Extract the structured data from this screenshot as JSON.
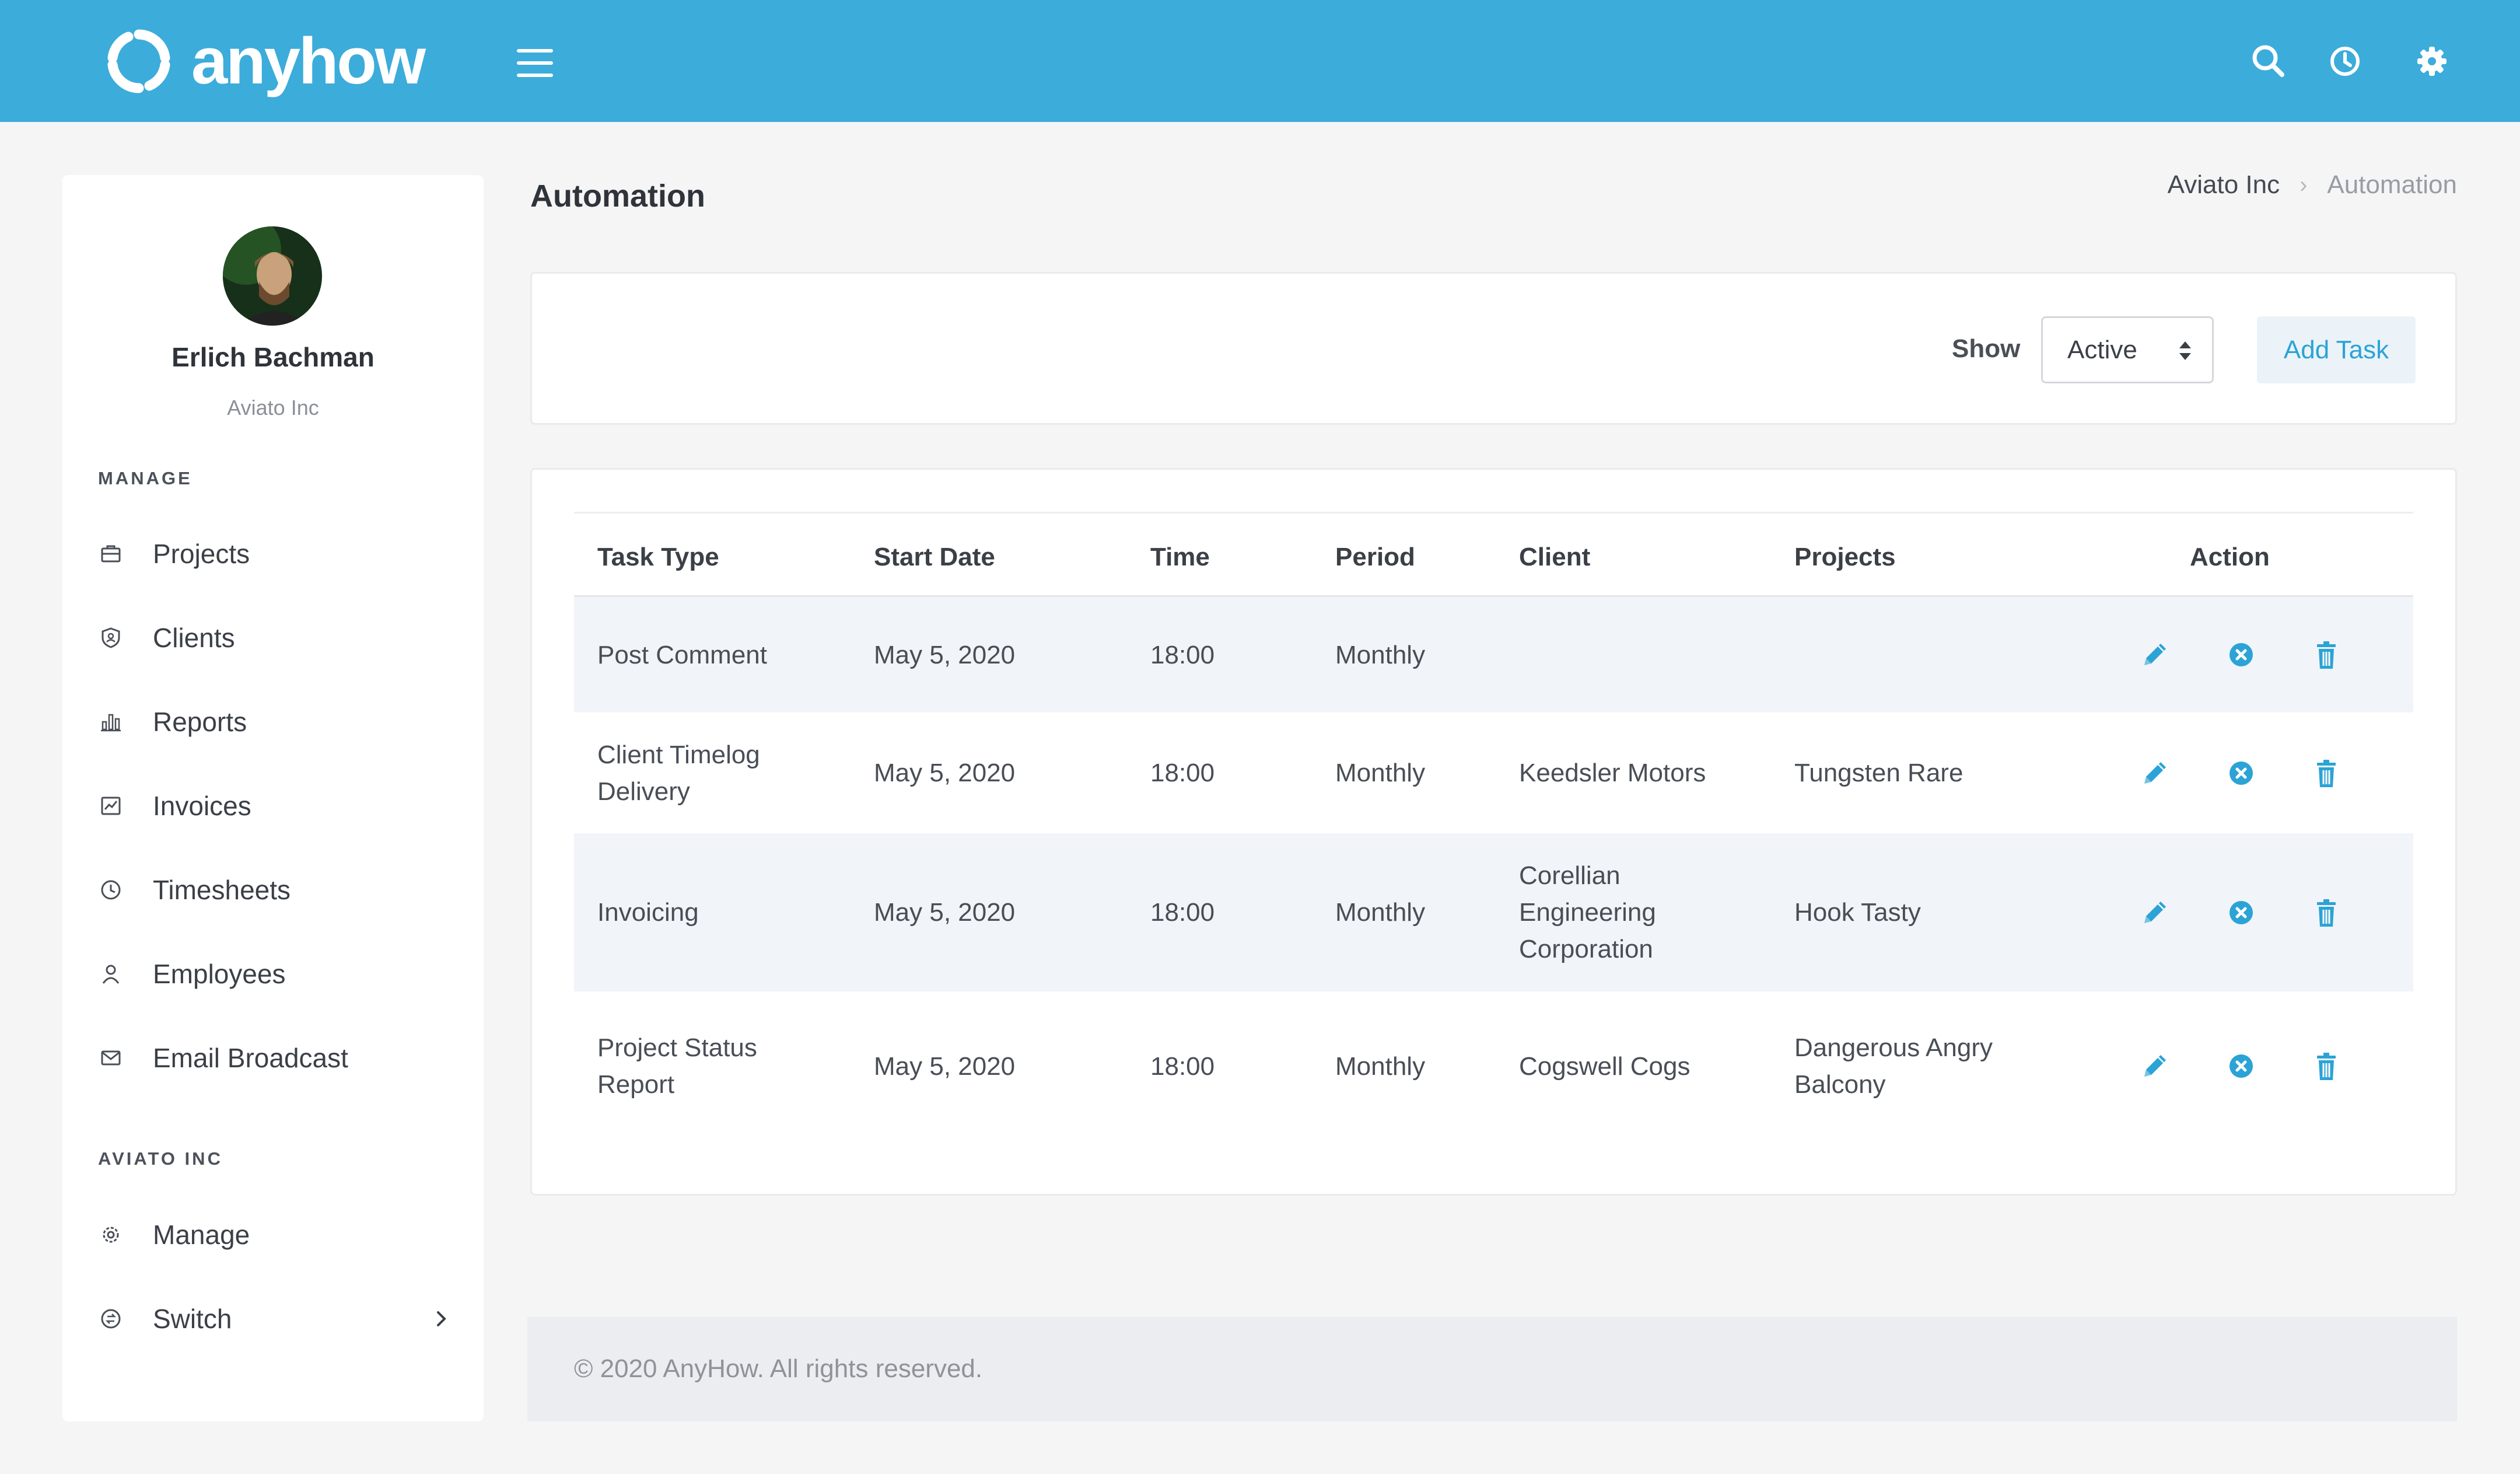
{
  "header": {
    "brand": "anyhow",
    "icons": [
      "refresh-logo-icon",
      "menu-icon",
      "search-icon",
      "clock-icon",
      "gear-icon"
    ],
    "accent_color": "#3cacdb"
  },
  "sidebar": {
    "user": {
      "name": "Erlich Bachman",
      "company": "Aviato Inc"
    },
    "sections": [
      {
        "label": "MANAGE",
        "items": [
          {
            "label": "Projects",
            "icon": "briefcase-icon"
          },
          {
            "label": "Clients",
            "icon": "shield-icon"
          },
          {
            "label": "Reports",
            "icon": "bar-chart-icon"
          },
          {
            "label": "Invoices",
            "icon": "trend-chart-icon"
          },
          {
            "label": "Timesheets",
            "icon": "clock-icon"
          },
          {
            "label": "Employees",
            "icon": "user-icon"
          },
          {
            "label": "Email Broadcast",
            "icon": "mail-icon"
          }
        ]
      },
      {
        "label": "AVIATO INC",
        "items": [
          {
            "label": "Manage",
            "icon": "gear-icon"
          },
          {
            "label": "Switch",
            "icon": "switch-icon"
          }
        ]
      }
    ]
  },
  "page": {
    "title": "Automation",
    "breadcrumb": {
      "parent": "Aviato Inc",
      "separator": "›",
      "current": "Automation"
    }
  },
  "filter": {
    "show_label": "Show",
    "selected": "Active",
    "add_task_label": "Add Task"
  },
  "table": {
    "columns": [
      "Task Type",
      "Start Date",
      "Time",
      "Period",
      "Client",
      "Projects",
      "Action"
    ],
    "rows": [
      {
        "task_type": [
          "Post Comment"
        ],
        "start_date": "May 5, 2020",
        "time": "18:00",
        "period": "Monthly",
        "client": [],
        "projects": []
      },
      {
        "task_type": [
          "Client Timelog",
          "Delivery"
        ],
        "start_date": "May 5, 2020",
        "time": "18:00",
        "period": "Monthly",
        "client": [
          "Keedsler Motors"
        ],
        "projects": [
          "Tungsten Rare"
        ]
      },
      {
        "task_type": [
          "Invoicing"
        ],
        "start_date": "May 5, 2020",
        "time": "18:00",
        "period": "Monthly",
        "client": [
          "Corellian",
          "Engineering",
          "Corporation"
        ],
        "projects": [
          "Hook Tasty"
        ]
      },
      {
        "task_type": [
          "Project Status",
          "Report"
        ],
        "start_date": "May 5, 2020",
        "time": "18:00",
        "period": "Monthly",
        "client": [
          "Cogswell Cogs"
        ],
        "projects": [
          "Dangerous Angry",
          "Balcony"
        ]
      }
    ],
    "row_actions": [
      "edit-pencil-icon",
      "cancel-circle-icon",
      "trash-icon"
    ],
    "action_color": "#2ba3d6"
  },
  "footer": {
    "text": "© 2020 AnyHow. All rights reserved."
  }
}
